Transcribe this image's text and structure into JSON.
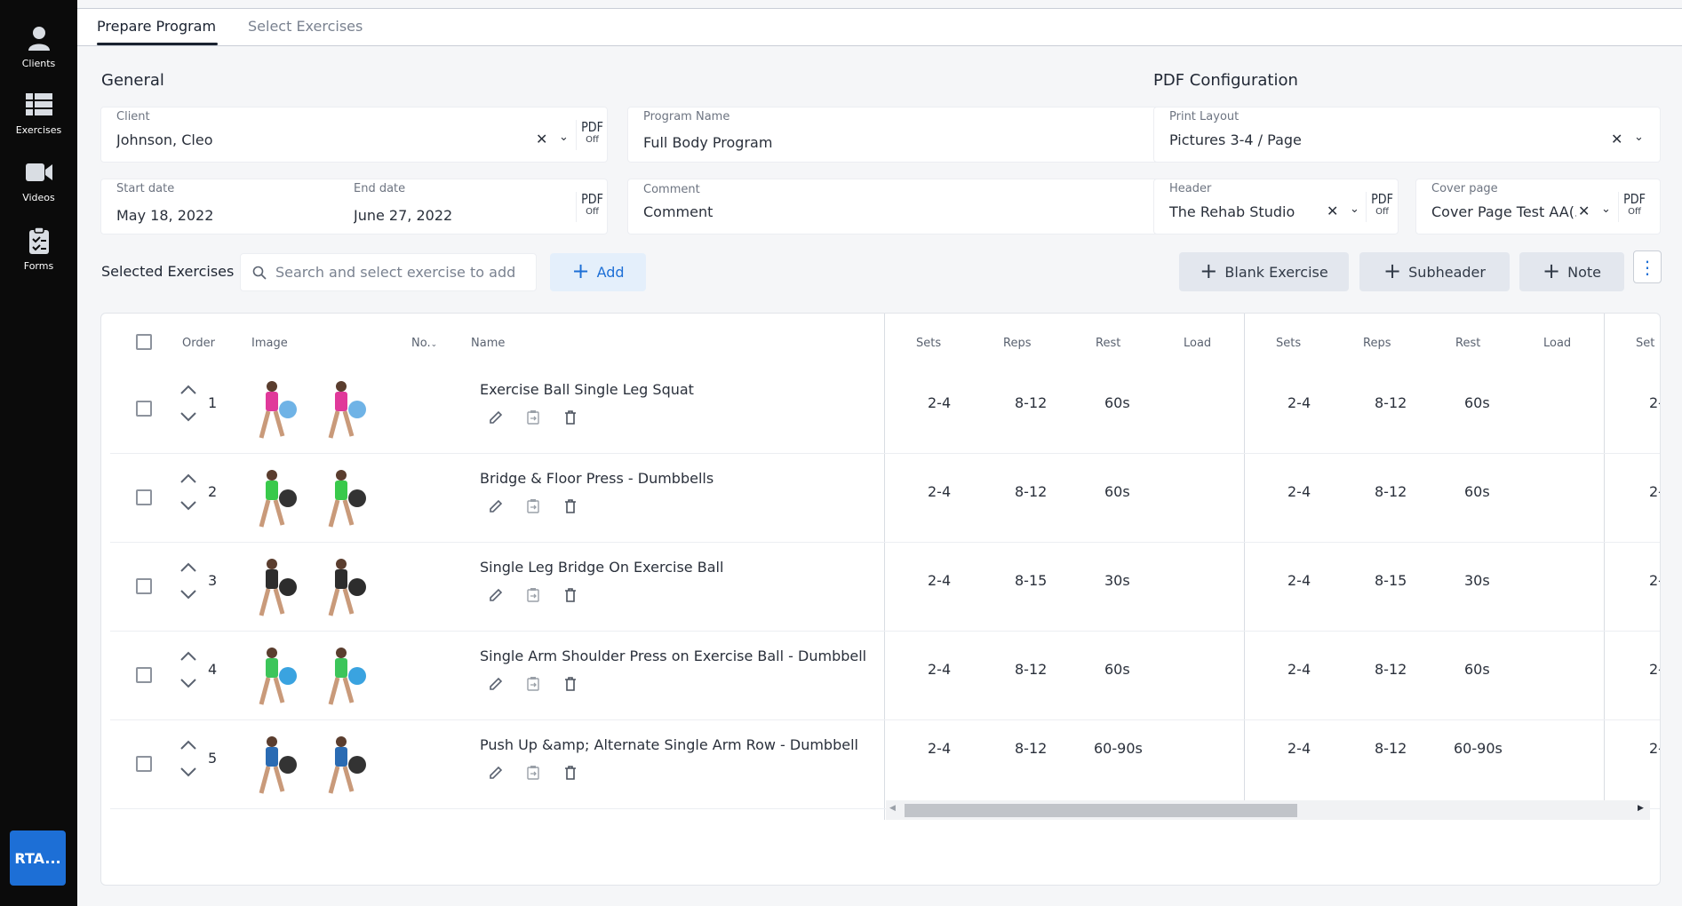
{
  "nav": {
    "clients": "Clients",
    "exercises": "Exercises",
    "videos": "Videos",
    "forms": "Forms",
    "account": "RTA..."
  },
  "tabs": [
    {
      "label": "Prepare Program",
      "active": true
    },
    {
      "label": "Select Exercises",
      "active": false
    }
  ],
  "general": {
    "title": "General",
    "client_label": "Client",
    "client_value": "Johnson, Cleo",
    "program_name_label": "Program Name",
    "program_name_value": "Full Body Program",
    "start_label": "Start date",
    "start_value": "May 18, 2022",
    "end_label": "End date",
    "end_value": "June 27, 2022",
    "comment_label": "Comment",
    "comment_placeholder": "Comment"
  },
  "pdf_toggle": {
    "label": "PDF",
    "state": "Off"
  },
  "pdf_config": {
    "title": "PDF Configuration",
    "layout_label": "Print Layout",
    "layout_value": "Pictures 3-4 / Page",
    "header_label": "Header",
    "header_value": "The Rehab Studio",
    "cover_label": "Cover page",
    "cover_value": "Cover Page Test AA(..."
  },
  "selected": {
    "title": "Selected Exercises",
    "search_placeholder": "Search and select exercise to add",
    "add_label": "Add",
    "blank_label": "Blank Exercise",
    "subheader_label": "Subheader",
    "note_label": "Note"
  },
  "table": {
    "headers": {
      "order": "Order",
      "image": "Image",
      "no": "No.",
      "name": "Name"
    },
    "group_headers": [
      "Sets",
      "Reps",
      "Rest",
      "Load"
    ],
    "partial_header": "Set",
    "rows": [
      {
        "order": "1",
        "name": "Exercise Ball Single Leg Squat",
        "sets": "2-4",
        "reps": "8-12",
        "rest": "60s",
        "load": "",
        "partial": "2-."
      },
      {
        "order": "2",
        "name": "Bridge & Floor Press - Dumbbells",
        "sets": "2-4",
        "reps": "8-12",
        "rest": "60s",
        "load": "",
        "partial": "2-."
      },
      {
        "order": "3",
        "name": "Single Leg Bridge On Exercise Ball",
        "sets": "2-4",
        "reps": "8-15",
        "rest": "30s",
        "load": "",
        "partial": "2-."
      },
      {
        "order": "4",
        "name": "Single Arm Shoulder Press on Exercise Ball - Dumbbell",
        "sets": "2-4",
        "reps": "8-12",
        "rest": "60s",
        "load": "",
        "partial": "2-."
      },
      {
        "order": "5",
        "name": "Push Up &amp; Alternate Single Arm Row - Dumbbell",
        "sets": "2-4",
        "reps": "8-12",
        "rest": "60-90s",
        "load": "",
        "partial": "2-."
      }
    ]
  },
  "colors": {
    "sidebar": "#0b0b0b",
    "accent": "#1d6fd6",
    "button_bg": "#e3e7ee",
    "add_bg": "#e4effb"
  }
}
